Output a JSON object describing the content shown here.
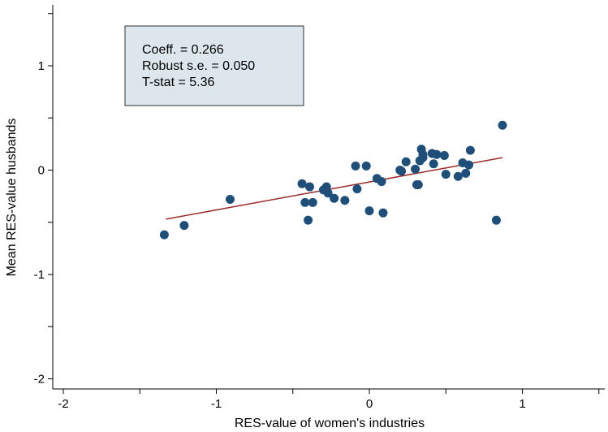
{
  "chart_data": {
    "type": "scatter",
    "xlabel": "RES-value of women's industries",
    "ylabel": "Mean RES-value husbands",
    "xlim": [
      -2.05,
      1.55
    ],
    "ylim": [
      -2.1,
      1.6
    ],
    "xticks": [
      -2,
      -1.5,
      -1,
      -0.5,
      0,
      0.5,
      1,
      1.5
    ],
    "xtick_labels": [
      "-2",
      "",
      "-1",
      "",
      "0",
      "",
      "1",
      ""
    ],
    "yticks": [
      -2,
      -1.5,
      -1,
      -0.5,
      0,
      0.5,
      1,
      1.5
    ],
    "ytick_labels": [
      "-2",
      "",
      "-1",
      "",
      "0",
      "",
      "1",
      ""
    ],
    "grid": false,
    "annotation": {
      "lines": [
        "Coeff. = 0.266",
        "Robust s.e. = 0.050",
        "T-stat = 5.36"
      ]
    },
    "fit_line": {
      "x": [
        -1.33,
        0.87
      ],
      "y": [
        -0.47,
        0.12
      ]
    },
    "points": {
      "x": [
        -1.34,
        -1.21,
        -0.91,
        -0.44,
        -0.42,
        -0.4,
        -0.39,
        -0.37,
        -0.3,
        -0.28,
        -0.27,
        -0.23,
        -0.16,
        -0.09,
        -0.08,
        -0.02,
        0.0,
        0.05,
        0.08,
        0.09,
        0.2,
        0.21,
        0.24,
        0.3,
        0.31,
        0.32,
        0.33,
        0.34,
        0.35,
        0.35,
        0.41,
        0.42,
        0.44,
        0.49,
        0.5,
        0.58,
        0.61,
        0.63,
        0.65,
        0.66,
        0.83,
        0.87
      ],
      "y": [
        -0.62,
        -0.53,
        -0.28,
        -0.13,
        -0.31,
        -0.48,
        -0.16,
        -0.31,
        -0.19,
        -0.16,
        -0.22,
        -0.27,
        -0.29,
        0.04,
        -0.18,
        0.04,
        -0.39,
        -0.08,
        -0.11,
        -0.41,
        0.0,
        -0.01,
        0.08,
        0.01,
        -0.14,
        -0.14,
        0.09,
        0.2,
        0.12,
        0.15,
        0.16,
        0.06,
        0.15,
        0.14,
        -0.04,
        -0.06,
        0.07,
        -0.03,
        0.05,
        0.19,
        -0.48,
        0.43
      ]
    },
    "colors": {
      "marker": "#1f4e79",
      "fit_line": "#9b2c2c",
      "annotation_fill": "#dce6ec",
      "axis": "#000000"
    }
  }
}
